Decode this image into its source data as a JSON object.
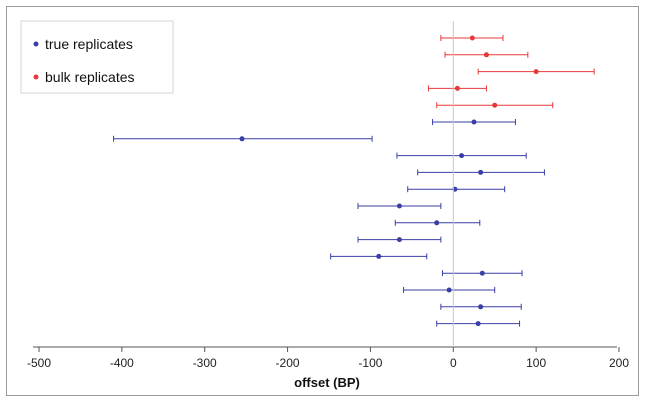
{
  "chart_data": {
    "type": "scatter",
    "xlabel": "offset (BP)",
    "ylabel": "",
    "xlim": [
      -500,
      200
    ],
    "xticks": [
      -500,
      -400,
      -300,
      -200,
      -100,
      0,
      100,
      200
    ],
    "grid": false,
    "legend_position": "top-left",
    "series": [
      {
        "name": "bulk replicates",
        "color": "#e8393a",
        "points": [
          {
            "x": 23,
            "low": -15,
            "high": 60
          },
          {
            "x": 40,
            "low": -10,
            "high": 90
          },
          {
            "x": 100,
            "low": 30,
            "high": 170
          },
          {
            "x": 5,
            "low": -30,
            "high": 40
          },
          {
            "x": 50,
            "low": -20,
            "high": 120
          }
        ]
      },
      {
        "name": "true replicates",
        "color": "#3a3fa6",
        "points": [
          {
            "x": 25,
            "low": -25,
            "high": 75
          },
          {
            "x": -255,
            "low": -410,
            "high": -98
          },
          {
            "x": 10,
            "low": -68,
            "high": 88
          },
          {
            "x": 33,
            "low": -43,
            "high": 110
          },
          {
            "x": 2,
            "low": -55,
            "high": 62
          },
          {
            "x": -65,
            "low": -115,
            "high": -15
          },
          {
            "x": -20,
            "low": -70,
            "high": 32
          },
          {
            "x": -65,
            "low": -115,
            "high": -15
          },
          {
            "x": -90,
            "low": -148,
            "high": -32
          },
          {
            "x": 35,
            "low": -13,
            "high": 83
          },
          {
            "x": -5,
            "low": -60,
            "high": 50
          },
          {
            "x": 33,
            "low": -15,
            "high": 82
          },
          {
            "x": 30,
            "low": -20,
            "high": 80
          }
        ]
      }
    ]
  }
}
